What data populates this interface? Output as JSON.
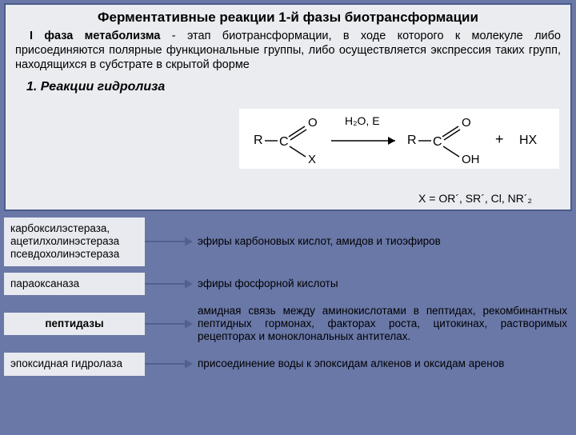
{
  "panel": {
    "bg_color": "#eaecf0",
    "border_color": "#4a5a8a",
    "title": "Ферментативные реакции 1-й фазы биотрансформации",
    "phase_label": "I фаза метаболизма",
    "description_rest": " - этап биотрансформации, в ходе которого к молекуле либо присоединяются полярные функциональные группы, либо осуществляется экспрессия таких групп, находящихся в субстрате в скрытой форме",
    "section_heading": "1. Реакции гидролиза",
    "reaction": {
      "top_left": "H₂O, E",
      "R_label": "R",
      "O_double": "O",
      "X_leaving": "X",
      "OH": "OH",
      "plus": "+",
      "HX": "HX",
      "colors": {
        "stroke": "#000000",
        "text": "#000000"
      }
    },
    "x_definition": "X = OR´, SR´, Cl, NR´₂"
  },
  "rows": [
    {
      "left": "карбоксилэстераза, ацетилхолинэстераза псевдохолинэстераза",
      "left_align": "left",
      "right": "эфиры карбоновых кислот, амидов и тиоэфиров",
      "right_justify": false
    },
    {
      "left": "параоксаназа",
      "left_align": "left",
      "right": "эфиры фосфорной кислоты",
      "right_justify": false
    },
    {
      "left": "пептидазы",
      "left_align": "center",
      "right": "амидная связь между аминокислотами в пептидах, рекомбинантных пептидных гормонах, факторах роста, цитокинах, растворимых рецепторах и моноклональных антителах.",
      "right_justify": true
    },
    {
      "left": "эпоксидная гидролаза",
      "left_align": "left",
      "right": "присоединение воды к эпоксидам алкенов и оксидам аренов",
      "right_justify": false
    }
  ],
  "arrow": {
    "color": "#526090",
    "length": 50,
    "head_w": 10,
    "head_h": 8,
    "stroke_w": 2
  },
  "cell_bg": "#e8eaef",
  "body_bg": "#6a78a8"
}
